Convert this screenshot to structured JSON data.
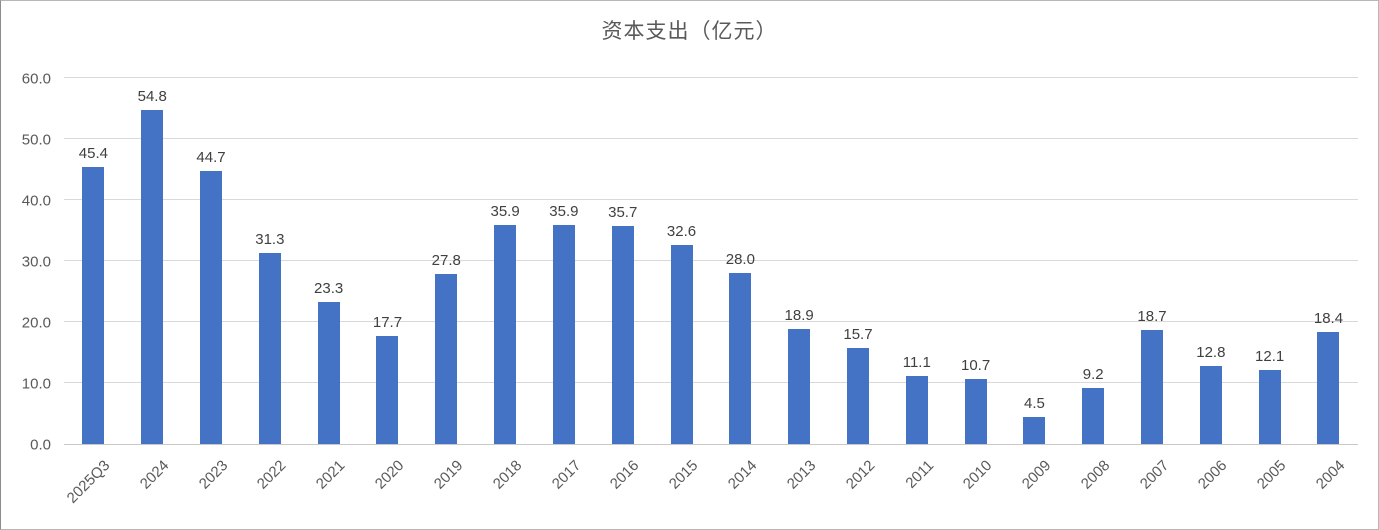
{
  "chart_data": {
    "type": "bar",
    "title": "资本支出（亿元）",
    "categories": [
      "2025Q3",
      "2024",
      "2023",
      "2022",
      "2021",
      "2020",
      "2019",
      "2018",
      "2017",
      "2016",
      "2015",
      "2014",
      "2013",
      "2012",
      "2011",
      "2010",
      "2009",
      "2008",
      "2007",
      "2006",
      "2005",
      "2004"
    ],
    "values": [
      45.4,
      54.8,
      44.7,
      31.3,
      23.3,
      17.7,
      27.8,
      35.9,
      35.9,
      35.7,
      32.6,
      28.0,
      18.9,
      15.7,
      11.1,
      10.7,
      4.5,
      9.2,
      18.7,
      12.8,
      12.1,
      18.4
    ],
    "xlabel": "",
    "ylabel": "",
    "ylim": [
      0,
      60
    ],
    "ytick_interval": 10,
    "ytick_labels": [
      "0.0",
      "10.0",
      "20.0",
      "30.0",
      "40.0",
      "50.0",
      "60.0"
    ],
    "grid": true,
    "legend": false,
    "data_labels": true,
    "x_label_rotation_deg": -45
  },
  "colors": {
    "bar": "#4472C4",
    "grid": "#d9d9d9",
    "axis": "#c9c9c9",
    "title": "#595959",
    "tick": "#595959",
    "data_label": "#404040",
    "background": "#ffffff",
    "frame": "#b7b7b7"
  }
}
